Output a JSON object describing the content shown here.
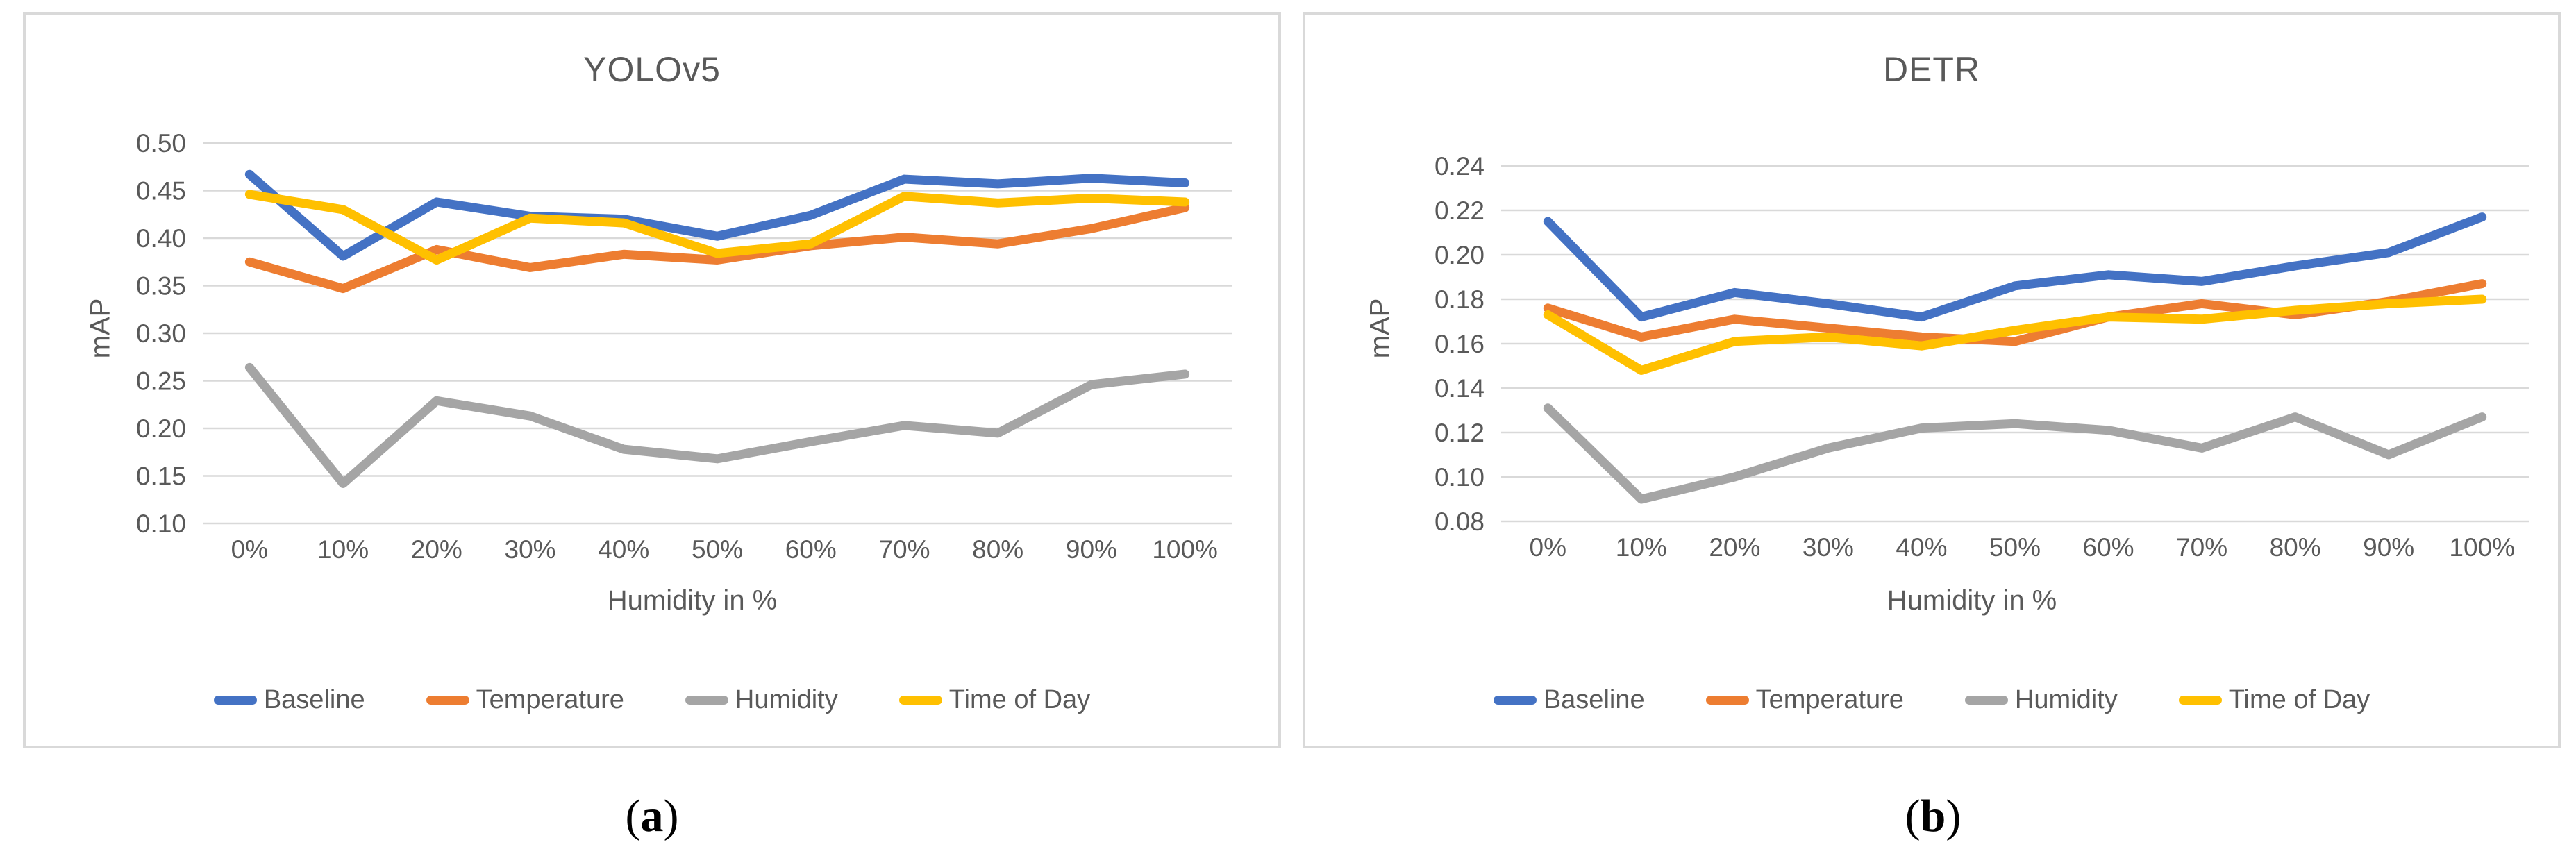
{
  "theme": {
    "background": "#FFFFFF",
    "panel_border": "#D9D9D9",
    "gridline": "#D9D9D9",
    "text": "#595959",
    "caption_color": "#000000"
  },
  "captions": {
    "open": "(",
    "a": "a",
    "b": "b",
    "close": ")"
  },
  "chart_data": [
    {
      "type": "line",
      "title": "YOLOv5",
      "xlabel": "Humidity in %",
      "ylabel": "mAP",
      "grid": true,
      "legend_position": "bottom",
      "categories": [
        "0%",
        "10%",
        "20%",
        "30%",
        "40%",
        "50%",
        "60%",
        "70%",
        "80%",
        "90%",
        "100%"
      ],
      "ylim": [
        0.1,
        0.5
      ],
      "yticks": [
        "0.50",
        "0.45",
        "0.40",
        "0.35",
        "0.30",
        "0.25",
        "0.20",
        "0.15",
        "0.10"
      ],
      "series": [
        {
          "name": "Baseline",
          "color": "#4472C4",
          "values": [
            0.467,
            0.381,
            0.438,
            0.423,
            0.42,
            0.402,
            0.424,
            0.462,
            0.457,
            0.463,
            0.458
          ]
        },
        {
          "name": "Temperature",
          "color": "#ED7D31",
          "values": [
            0.375,
            0.347,
            0.388,
            0.369,
            0.383,
            0.377,
            0.392,
            0.401,
            0.394,
            0.41,
            0.432
          ]
        },
        {
          "name": "Humidity",
          "color": "#A5A5A5",
          "values": [
            0.264,
            0.142,
            0.229,
            0.213,
            0.178,
            0.168,
            0.186,
            0.203,
            0.195,
            0.246,
            0.257
          ]
        },
        {
          "name": "Time of Day",
          "color": "#FFC000",
          "values": [
            0.446,
            0.43,
            0.377,
            0.421,
            0.416,
            0.384,
            0.394,
            0.444,
            0.437,
            0.442,
            0.438
          ]
        }
      ]
    },
    {
      "type": "line",
      "title": "DETR",
      "xlabel": "Humidity in %",
      "ylabel": "mAP",
      "grid": true,
      "legend_position": "bottom",
      "categories": [
        "0%",
        "10%",
        "20%",
        "30%",
        "40%",
        "50%",
        "60%",
        "70%",
        "80%",
        "90%",
        "100%"
      ],
      "ylim": [
        0.08,
        0.24
      ],
      "yticks": [
        "0.24",
        "0.22",
        "0.20",
        "0.18",
        "0.16",
        "0.14",
        "0.12",
        "0.10",
        "0.08"
      ],
      "series": [
        {
          "name": "Baseline",
          "color": "#4472C4",
          "values": [
            0.215,
            0.172,
            0.183,
            0.178,
            0.172,
            0.186,
            0.191,
            0.188,
            0.195,
            0.201,
            0.217
          ]
        },
        {
          "name": "Temperature",
          "color": "#ED7D31",
          "values": [
            0.176,
            0.163,
            0.171,
            0.167,
            0.163,
            0.161,
            0.172,
            0.178,
            0.173,
            0.179,
            0.187
          ]
        },
        {
          "name": "Humidity",
          "color": "#A5A5A5",
          "values": [
            0.131,
            0.09,
            0.1,
            0.113,
            0.122,
            0.124,
            0.121,
            0.113,
            0.127,
            0.11,
            0.127
          ]
        },
        {
          "name": "Time of Day",
          "color": "#FFC000",
          "values": [
            0.173,
            0.148,
            0.161,
            0.163,
            0.159,
            0.166,
            0.172,
            0.171,
            0.175,
            0.178,
            0.18
          ]
        }
      ]
    }
  ]
}
